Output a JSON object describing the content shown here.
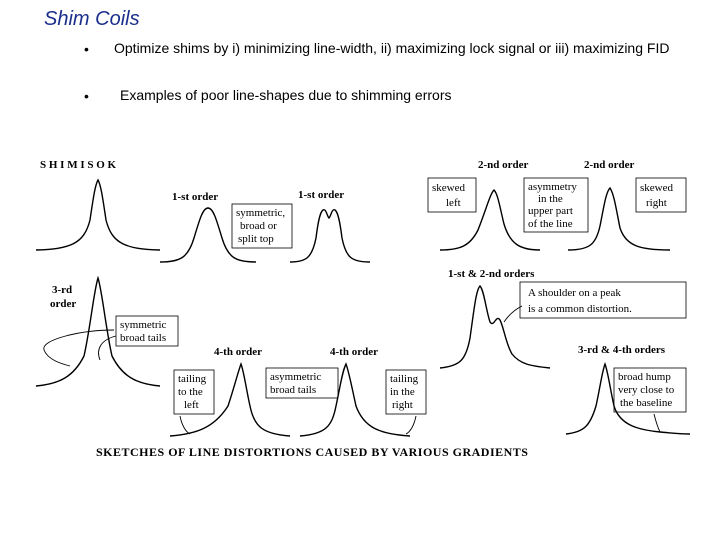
{
  "slide": {
    "title": "Shim Coils",
    "bullets": [
      "Optimize shims by i) minimizing line-width, ii) maximizing lock signal or iii) maximizing FID",
      "Examples of poor line-shapes due to shimming errors"
    ]
  },
  "figure": {
    "labels": {
      "shim_ok": "S H I M   I S   O K",
      "first_order_a": "1-st  order",
      "first_order_b": "1-st  order",
      "symmetric_1": "symmetric,",
      "symmetric_2": "broad or",
      "symmetric_3": "split top",
      "second_order_a": "2-nd  order",
      "second_order_b": "2-nd  order",
      "skewed_left_1": "skewed",
      "skewed_left_2": "left",
      "asym_1": "asymmetry",
      "asym_2": "in  the",
      "asym_3": "upper part",
      "asym_4": "of  the  line",
      "skewed_right_1": "skewed",
      "skewed_right_2": "right",
      "third_order_1": "3-rd",
      "third_order_2": "order",
      "sym_tails_1": "symmetric",
      "sym_tails_2": "broad  tails",
      "first_second": "1-st & 2-nd  orders",
      "shoulder_1": "A  shoulder  on  a  peak",
      "shoulder_2": "is  a  common  distortion.",
      "fourth_a": "4-th  order",
      "fourth_b": "4-th  order",
      "tail_left_1": "tailing",
      "tail_left_2": "to  the",
      "tail_left_3": "left",
      "asym_broad_1": "asymmetric",
      "asym_broad_2": "broad  tails",
      "tail_right_1": "tailing",
      "tail_right_2": "in  the",
      "tail_right_3": "right",
      "third_fourth": "3-rd & 4-th  orders",
      "hump_1": "broad  hump",
      "hump_2": "very  close  to",
      "hump_3": "the  baseline",
      "caption": "SKETCHES OF LINE DISTORTIONS CAUSED BY VARIOUS GRADIENTS"
    }
  }
}
